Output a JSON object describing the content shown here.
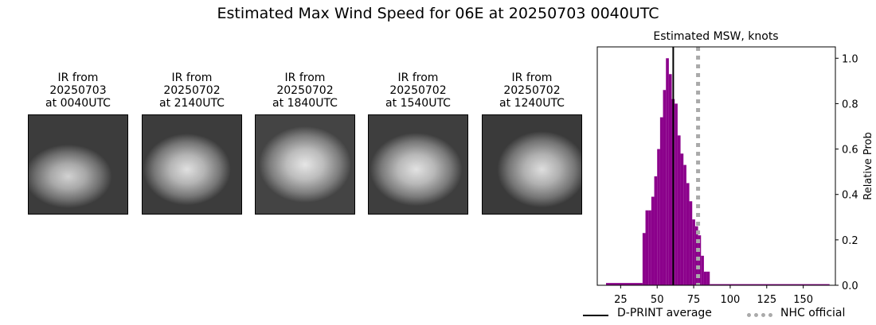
{
  "figure": {
    "title": "Estimated Max Wind Speed for 06E at 20250703 0040UTC"
  },
  "panels": [
    {
      "title_line1": "IR from",
      "title_line2": "20250703",
      "title_line3": "at 0040UTC"
    },
    {
      "title_line1": "IR from",
      "title_line2": "20250702",
      "title_line3": "at 2140UTC"
    },
    {
      "title_line1": "IR from",
      "title_line2": "20250702",
      "title_line3": "at 1840UTC"
    },
    {
      "title_line1": "IR from",
      "title_line2": "20250702",
      "title_line3": "at 1540UTC"
    },
    {
      "title_line1": "IR from",
      "title_line2": "20250702",
      "title_line3": "at 1240UTC"
    }
  ],
  "chart_data": {
    "type": "bar",
    "title": "Estimated MSW, knots",
    "xlabel": "",
    "ylabel": "Relative Prob",
    "xlim": [
      9,
      172
    ],
    "ylim": [
      0,
      1.05
    ],
    "xticks": [
      25,
      50,
      75,
      100,
      125,
      150
    ],
    "yticks": [
      0.0,
      0.2,
      0.4,
      0.6,
      0.8,
      1.0
    ],
    "ytick_labels": [
      "0.0",
      "0.2",
      "0.4",
      "0.6",
      "0.8",
      "1.0"
    ],
    "y_axis_side": "right",
    "bar_color": "#8b008b",
    "bins": [
      {
        "x0": 15,
        "x1": 40,
        "value": 0.01
      },
      {
        "x0": 40,
        "x1": 42,
        "value": 0.23
      },
      {
        "x0": 42,
        "x1": 44,
        "value": 0.33
      },
      {
        "x0": 44,
        "x1": 46,
        "value": 0.33
      },
      {
        "x0": 46,
        "x1": 48,
        "value": 0.39
      },
      {
        "x0": 48,
        "x1": 50,
        "value": 0.48
      },
      {
        "x0": 50,
        "x1": 52,
        "value": 0.6
      },
      {
        "x0": 52,
        "x1": 54,
        "value": 0.74
      },
      {
        "x0": 54,
        "x1": 56,
        "value": 0.86
      },
      {
        "x0": 56,
        "x1": 58,
        "value": 1.0
      },
      {
        "x0": 58,
        "x1": 60,
        "value": 0.93
      },
      {
        "x0": 60,
        "x1": 62,
        "value": 0.82
      },
      {
        "x0": 62,
        "x1": 64,
        "value": 0.8
      },
      {
        "x0": 64,
        "x1": 66,
        "value": 0.66
      },
      {
        "x0": 66,
        "x1": 68,
        "value": 0.58
      },
      {
        "x0": 68,
        "x1": 70,
        "value": 0.53
      },
      {
        "x0": 70,
        "x1": 72,
        "value": 0.45
      },
      {
        "x0": 72,
        "x1": 74,
        "value": 0.37
      },
      {
        "x0": 74,
        "x1": 76,
        "value": 0.29
      },
      {
        "x0": 76,
        "x1": 78,
        "value": 0.26
      },
      {
        "x0": 78,
        "x1": 80,
        "value": 0.22
      },
      {
        "x0": 80,
        "x1": 82,
        "value": 0.13
      },
      {
        "x0": 82,
        "x1": 84,
        "value": 0.06
      },
      {
        "x0": 84,
        "x1": 86,
        "value": 0.06
      },
      {
        "x0": 86,
        "x1": 168,
        "value": 0.005
      }
    ],
    "lines": [
      {
        "name": "D-PRINT average",
        "x": 61,
        "color": "#000000",
        "style": "solid"
      },
      {
        "name": "NHC official",
        "x": 78,
        "color": "#aaaaaa",
        "style": "dotted"
      }
    ],
    "legend_placement": "bottom"
  }
}
